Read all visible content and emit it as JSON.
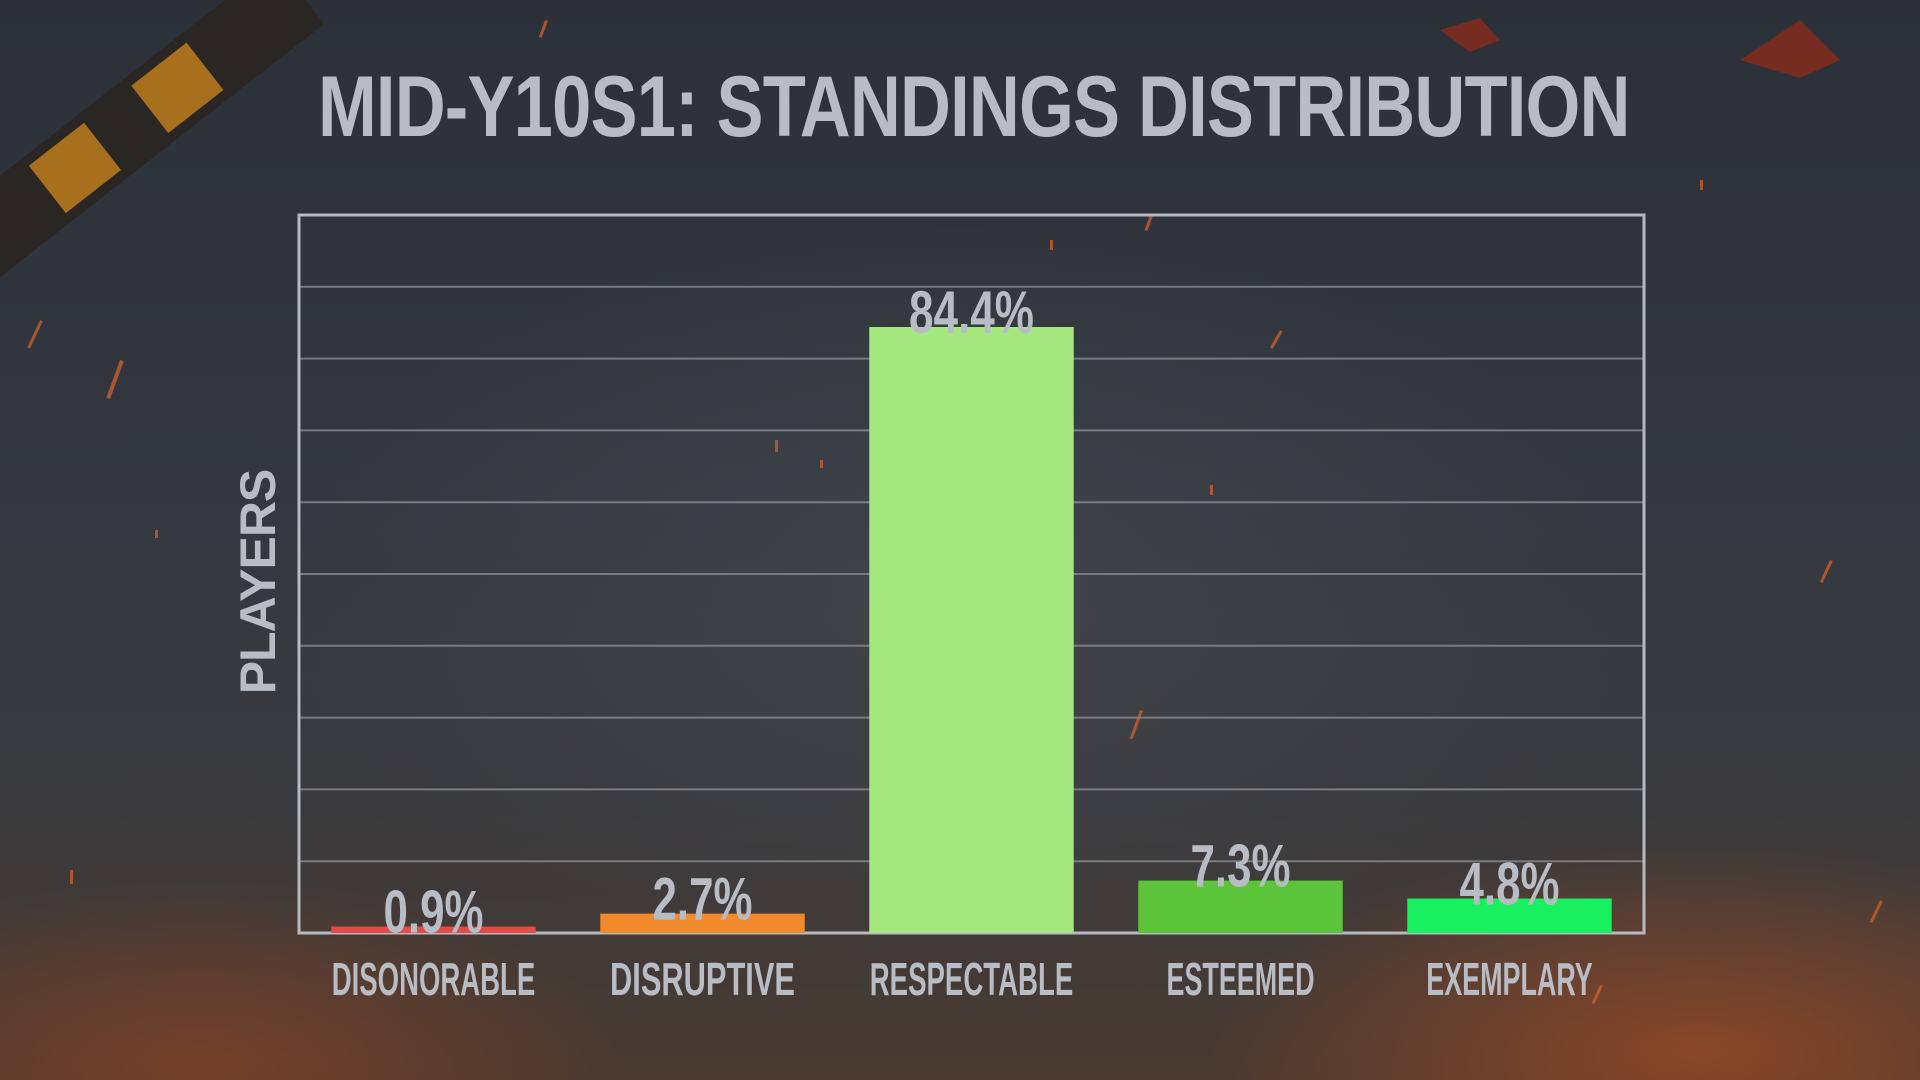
{
  "chart_data": {
    "type": "bar",
    "title": "MID-Y10S1: STANDINGS DISTRIBUTION",
    "xlabel": "",
    "ylabel": "PLAYERS",
    "categories": [
      "DISONORABLE",
      "DISRUPTIVE",
      "RESPECTABLE",
      "ESTEEMED",
      "EXEMPLARY"
    ],
    "values": [
      0.9,
      2.7,
      84.4,
      7.3,
      4.8
    ],
    "value_labels": [
      "0.9%",
      "2.7%",
      "84.4%",
      "7.3%",
      "4.8%"
    ],
    "colors": [
      "#e34a4a",
      "#f08a2c",
      "#a6e880",
      "#5cc43a",
      "#18f060"
    ],
    "ylim": [
      0,
      100
    ],
    "grid": true,
    "gridline_count": 10,
    "legend": "none"
  }
}
